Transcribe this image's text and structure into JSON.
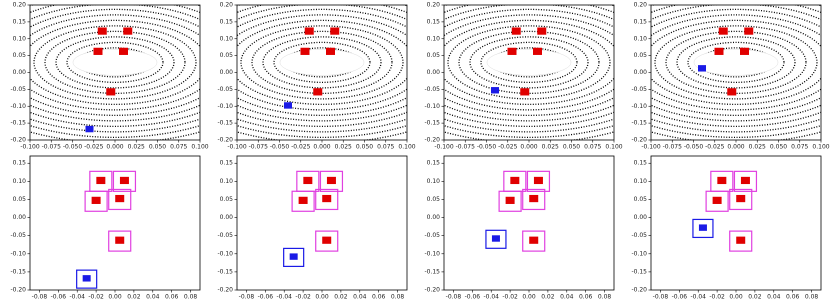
{
  "chart_data": [
    {
      "type": "scatter",
      "xlim": [
        -0.1,
        0.1
      ],
      "ylim": [
        -0.2,
        0.2
      ],
      "xticks": [
        {
          "value": -0.1,
          "label": "-0.100"
        },
        -0.075,
        {
          "value": -0.05,
          "label": "-0.050"
        },
        -0.025,
        {
          "value": 0,
          "label": "0.000"
        },
        0.025,
        {
          "value": 0.05,
          "label": "0.050"
        },
        0.075,
        {
          "value": 0.1,
          "label": "0.100"
        }
      ],
      "yticks": [
        {
          "value": 0.2,
          "label": "0.20"
        },
        0.15,
        {
          "value": 0.1,
          "label": "0.10"
        },
        0.05,
        {
          "value": 0,
          "label": "0.00"
        },
        -0.05,
        {
          "value": -0.1,
          "label": "-0.10"
        },
        -0.15,
        {
          "value": -0.2,
          "label": "-0.20"
        }
      ],
      "series": [
        {
          "color": "#e00000",
          "x": [
            -0.015,
            0.015,
            -0.02,
            0.01,
            -0.005
          ],
          "values": [
            0.12,
            0.12,
            0.06,
            0.06,
            -0.06
          ]
        },
        {
          "color": "#1a1ae6",
          "x": [
            -0.03
          ],
          "values": [
            -0.17
          ]
        }
      ]
    },
    {
      "type": "scatter",
      "xlim": [
        -0.1,
        0.1
      ],
      "ylim": [
        -0.2,
        0.2
      ],
      "xticks": [
        {
          "value": -0.1,
          "label": "-0.100"
        },
        -0.075,
        {
          "value": -0.05,
          "label": "-0.050"
        },
        -0.025,
        {
          "value": 0,
          "label": "0.000"
        },
        0.025,
        {
          "value": 0.05,
          "label": "0.050"
        },
        0.075,
        {
          "value": 0.1,
          "label": "0.100"
        }
      ],
      "yticks": [
        {
          "value": 0.2,
          "label": "0.20"
        },
        0.15,
        {
          "value": 0.1,
          "label": "0.10"
        },
        0.05,
        {
          "value": 0,
          "label": "0.00"
        },
        -0.05,
        {
          "value": -0.1,
          "label": "-0.10"
        },
        -0.15,
        {
          "value": -0.2,
          "label": "-0.20"
        }
      ],
      "series": [
        {
          "color": "#e00000",
          "x": [
            -0.015,
            0.015,
            -0.02,
            0.01,
            -0.005
          ],
          "values": [
            0.12,
            0.12,
            0.06,
            0.06,
            -0.06
          ]
        },
        {
          "color": "#1a1ae6",
          "x": [
            -0.04
          ],
          "values": [
            -0.1
          ]
        }
      ]
    },
    {
      "type": "scatter",
      "xlim": [
        -0.1,
        0.1
      ],
      "ylim": [
        -0.2,
        0.2
      ],
      "xticks": [
        {
          "value": -0.1,
          "label": "-0.100"
        },
        -0.075,
        {
          "value": -0.05,
          "label": "-0.050"
        },
        -0.025,
        {
          "value": 0,
          "label": "0.000"
        },
        0.025,
        {
          "value": 0.05,
          "label": "0.050"
        },
        0.075,
        {
          "value": 0.1,
          "label": "0.100"
        }
      ],
      "yticks": [
        {
          "value": 0.2,
          "label": "0.20"
        },
        0.15,
        {
          "value": 0.1,
          "label": "0.10"
        },
        0.05,
        {
          "value": 0,
          "label": "0.00"
        },
        -0.05,
        {
          "value": -0.1,
          "label": "-0.10"
        },
        -0.15,
        {
          "value": -0.2,
          "label": "-0.20"
        }
      ],
      "series": [
        {
          "color": "#e00000",
          "x": [
            -0.015,
            0.015,
            -0.02,
            0.01,
            -0.005
          ],
          "values": [
            0.12,
            0.12,
            0.06,
            0.06,
            -0.06
          ]
        },
        {
          "color": "#1a1ae6",
          "x": [
            -0.04
          ],
          "values": [
            -0.055
          ]
        }
      ]
    },
    {
      "type": "scatter",
      "xlim": [
        -0.1,
        0.1
      ],
      "ylim": [
        -0.2,
        0.2
      ],
      "xticks": [
        {
          "value": -0.1,
          "label": "-0.100"
        },
        -0.075,
        {
          "value": -0.05,
          "label": "-0.050"
        },
        -0.025,
        {
          "value": 0,
          "label": "0.000"
        },
        0.025,
        {
          "value": 0.05,
          "label": "0.050"
        },
        0.075,
        {
          "value": 0.1,
          "label": "0.100"
        }
      ],
      "yticks": [
        {
          "value": 0.2,
          "label": "0.20"
        },
        0.15,
        {
          "value": 0.1,
          "label": "0.10"
        },
        0.05,
        {
          "value": 0,
          "label": "0.00"
        },
        -0.05,
        {
          "value": -0.1,
          "label": "-0.10"
        },
        -0.15,
        {
          "value": -0.2,
          "label": "-0.20"
        }
      ],
      "series": [
        {
          "color": "#e00000",
          "x": [
            -0.015,
            0.015,
            -0.02,
            0.01,
            -0.005
          ],
          "values": [
            0.12,
            0.12,
            0.06,
            0.06,
            -0.06
          ]
        },
        {
          "color": "#1a1ae6",
          "x": [
            -0.04
          ],
          "values": [
            0.01
          ]
        }
      ]
    },
    {
      "type": "scatter",
      "xlim": [
        -0.09,
        0.09
      ],
      "ylim": [
        -0.2,
        0.17
      ],
      "xticks": [
        -0.08,
        -0.06,
        -0.04,
        -0.02,
        {
          "value": 0,
          "label": "0.00"
        },
        0.02,
        0.04,
        0.06,
        0.08
      ],
      "yticks": [
        0.15,
        {
          "value": 0.1,
          "label": "0.10"
        },
        0.05,
        {
          "value": 0,
          "label": "0.00"
        },
        -0.05,
        {
          "value": -0.1,
          "label": "-0.10"
        },
        -0.15,
        {
          "value": -0.2,
          "label": "-0.20"
        }
      ],
      "series": [
        {
          "color": "#e00000",
          "x": [
            -0.015,
            0.01,
            -0.02,
            0.005,
            0.005
          ],
          "values": [
            0.1,
            0.1,
            0.045,
            0.05,
            -0.065
          ]
        },
        {
          "color": "#1a1ae6",
          "x": [
            -0.03
          ],
          "values": [
            -0.17
          ]
        }
      ]
    },
    {
      "type": "scatter",
      "xlim": [
        -0.09,
        0.09
      ],
      "ylim": [
        -0.2,
        0.17
      ],
      "xticks": [
        -0.08,
        -0.06,
        -0.04,
        -0.02,
        {
          "value": 0,
          "label": "0.00"
        },
        0.02,
        0.04,
        0.06,
        0.08
      ],
      "yticks": [
        0.15,
        {
          "value": 0.1,
          "label": "0.10"
        },
        0.05,
        {
          "value": 0,
          "label": "0.00"
        },
        -0.05,
        {
          "value": -0.1,
          "label": "-0.10"
        },
        -0.15,
        {
          "value": -0.2,
          "label": "-0.20"
        }
      ],
      "series": [
        {
          "color": "#e00000",
          "x": [
            -0.015,
            0.01,
            -0.02,
            0.005,
            0.005
          ],
          "values": [
            0.1,
            0.1,
            0.045,
            0.05,
            -0.065
          ]
        },
        {
          "color": "#1a1ae6",
          "x": [
            -0.03
          ],
          "values": [
            -0.11
          ]
        }
      ]
    },
    {
      "type": "scatter",
      "xlim": [
        -0.09,
        0.09
      ],
      "ylim": [
        -0.2,
        0.17
      ],
      "xticks": [
        -0.08,
        -0.06,
        -0.04,
        -0.02,
        {
          "value": 0,
          "label": "0.00"
        },
        0.02,
        0.04,
        0.06,
        0.08
      ],
      "yticks": [
        0.15,
        {
          "value": 0.1,
          "label": "0.10"
        },
        0.05,
        {
          "value": 0,
          "label": "0.00"
        },
        -0.05,
        {
          "value": -0.1,
          "label": "-0.10"
        },
        -0.15,
        {
          "value": -0.2,
          "label": "-0.20"
        }
      ],
      "series": [
        {
          "color": "#e00000",
          "x": [
            -0.015,
            0.01,
            -0.02,
            0.005,
            0.005
          ],
          "values": [
            0.1,
            0.1,
            0.045,
            0.05,
            -0.065
          ]
        },
        {
          "color": "#1a1ae6",
          "x": [
            -0.035
          ],
          "values": [
            -0.06
          ]
        }
      ]
    },
    {
      "type": "scatter",
      "xlim": [
        -0.09,
        0.09
      ],
      "ylim": [
        -0.2,
        0.17
      ],
      "xticks": [
        -0.08,
        -0.06,
        -0.04,
        -0.02,
        {
          "value": 0,
          "label": "0.00"
        },
        0.02,
        0.04,
        0.06,
        0.08
      ],
      "yticks": [
        0.15,
        {
          "value": 0.1,
          "label": "0.10"
        },
        0.05,
        {
          "value": 0,
          "label": "0.00"
        },
        -0.05,
        {
          "value": -0.1,
          "label": "-0.10"
        },
        -0.15,
        {
          "value": -0.2,
          "label": "-0.20"
        }
      ],
      "series": [
        {
          "color": "#e00000",
          "x": [
            -0.015,
            0.01,
            -0.02,
            0.005,
            0.005
          ],
          "values": [
            0.1,
            0.1,
            0.045,
            0.05,
            -0.065
          ]
        },
        {
          "color": "#1a1ae6",
          "x": [
            -0.035
          ],
          "values": [
            -0.03
          ]
        }
      ]
    }
  ]
}
